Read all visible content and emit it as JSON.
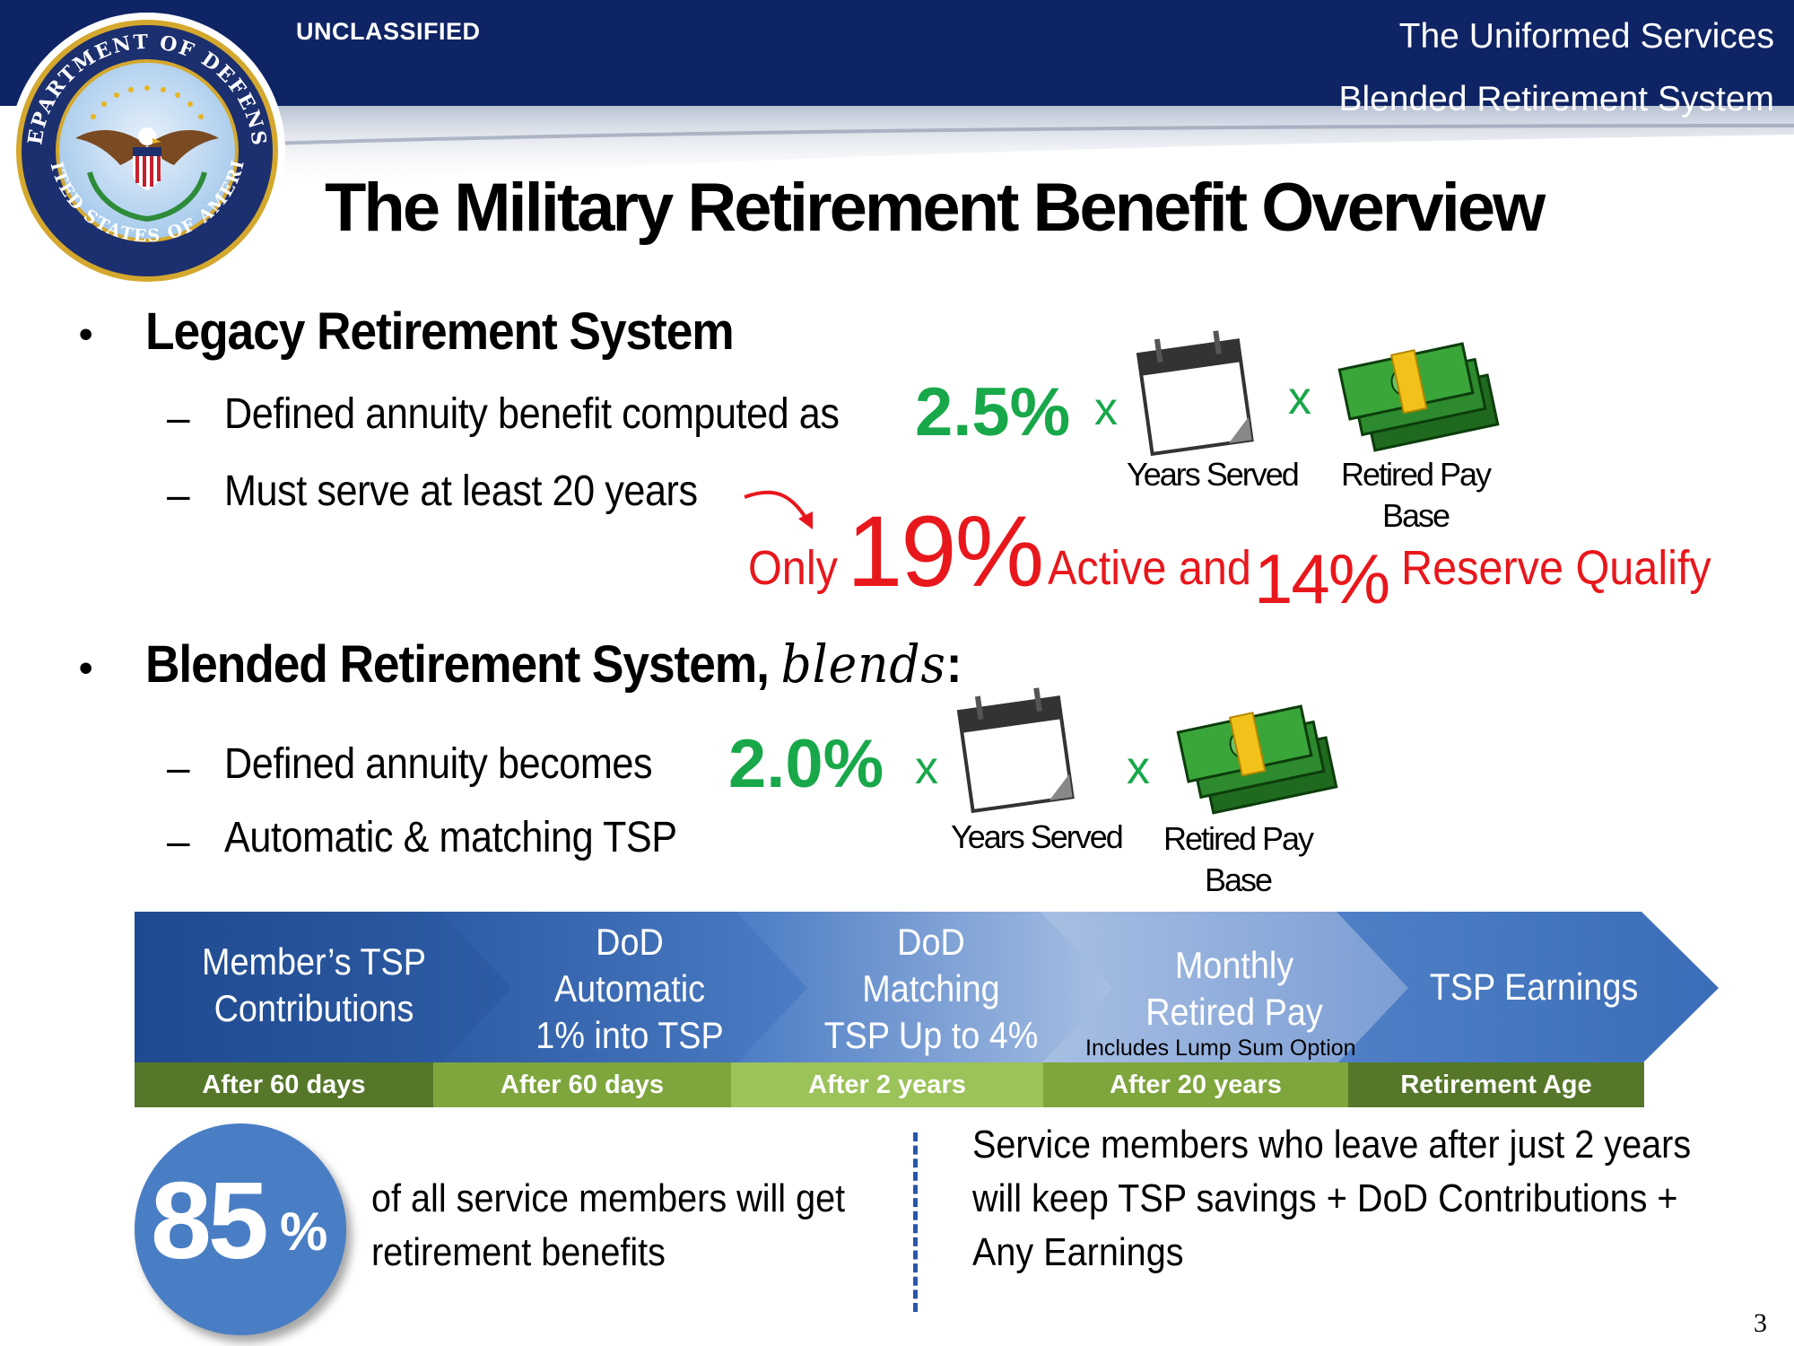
{
  "header": {
    "classification": "UNCLASSIFIED",
    "title_line1": "The Uniformed Services",
    "title_line2": "Blended Retirement System"
  },
  "seal": {
    "icon": "dod-seal",
    "ring_text_top": "DEPARTMENT OF DEFENSE",
    "ring_text_bottom": "UNITED STATES OF AMERICA"
  },
  "slide_title": "The Military Retirement Benefit Overview",
  "legacy": {
    "heading": "Legacy Retirement System",
    "item1": "Defined annuity benefit computed as",
    "rate": "2.5%",
    "times": "x",
    "years_label": "Years Served",
    "pay_label_line1": "Retired Pay",
    "pay_label_line2": "Base",
    "item2": "Must serve at least 20 years",
    "only": "Only",
    "active_pct": "19%",
    "active_and": "Active and",
    "reserve_pct": "14%",
    "reserve_qualify": "Reserve Qualify"
  },
  "blended": {
    "heading": "Blended Retirement System,",
    "heading_italic": "blends",
    "heading_colon": ":",
    "item1": "Defined annuity becomes",
    "rate": "2.0%",
    "times": "x",
    "years_label": "Years Served",
    "pay_label_line1": "Retired Pay",
    "pay_label_line2": "Base",
    "item2": "Automatic & matching TSP"
  },
  "timeline": {
    "stages": [
      {
        "line1": "Member’s TSP",
        "line2": "Contributions",
        "line3": ""
      },
      {
        "line1": "DoD",
        "line2": "Automatic",
        "line3": "1% into TSP"
      },
      {
        "line1": "DoD",
        "line2": "Matching",
        "line3": "TSP Up to 4%"
      },
      {
        "line1": "Monthly",
        "line2": "Retired Pay",
        "line3": "",
        "sub": "Includes Lump Sum Option"
      },
      {
        "line1": "TSP Earnings",
        "line2": "",
        "line3": ""
      }
    ],
    "timing": [
      "After 60 days",
      "After 60 days",
      "After 2 years",
      "After 20 years",
      "Retirement  Age"
    ],
    "colors": {
      "stage_dark": "#2c5599",
      "stage_light": "#9fb7df",
      "green_dark": "#56772a",
      "green_mid": "#7fa53d",
      "green_light": "#9cc25a"
    }
  },
  "badge": {
    "number": "85",
    "unit": "%",
    "text_line1": "of all service members will get",
    "text_line2": "retirement benefits"
  },
  "keep": {
    "line1": "Service members who leave after just 2 years",
    "line2": "will keep TSP savings + DoD Contributions +",
    "line3": "Any Earnings"
  },
  "page_number": "3",
  "colors": {
    "navy": "#0f2464",
    "green": "#18a84a",
    "red": "#e8171c",
    "badge_blue": "#4a7ec4"
  },
  "icons": [
    "calendar-icon",
    "money-stack-icon",
    "arrow-icon"
  ]
}
